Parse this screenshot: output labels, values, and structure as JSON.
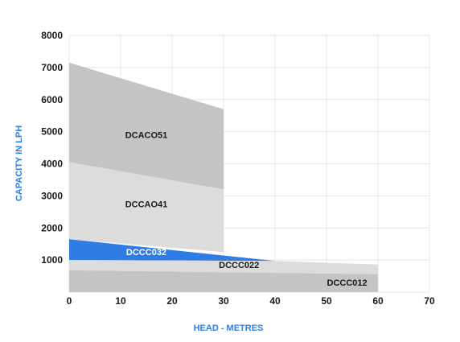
{
  "chart_data": {
    "type": "area",
    "title": "",
    "xlabel": "HEAD - METRES",
    "ylabel": "CAPACITY IN LPH",
    "xlim": [
      0,
      70
    ],
    "ylim": [
      0,
      8000
    ],
    "x_ticks": [
      0,
      10,
      20,
      30,
      40,
      50,
      60,
      70
    ],
    "y_ticks": [
      1000,
      2000,
      3000,
      4000,
      5000,
      6000,
      7000,
      8000
    ],
    "grid": true,
    "colors": {
      "axis_title": "#2f7ce4",
      "grid": "#e4e4e4",
      "text": "#1a1a1a"
    },
    "series": [
      {
        "name": "DCACO51",
        "color": "#c4c4c4",
        "label_color": "#1a1a1a",
        "label_at": [
          15,
          4800
        ],
        "points": [
          [
            0,
            7150
          ],
          [
            30,
            5700
          ],
          [
            30,
            3200
          ],
          [
            0,
            4050
          ]
        ]
      },
      {
        "name": "DCCAO41",
        "color": "#dcdcdc",
        "label_color": "#1a1a1a",
        "label_at": [
          15,
          2650
        ],
        "points": [
          [
            0,
            4050
          ],
          [
            30,
            3200
          ],
          [
            30,
            1250
          ],
          [
            0,
            1650
          ]
        ]
      },
      {
        "name": "DCCC032",
        "color": "#2f7ce4",
        "label_color": "#ffffff",
        "label_at": [
          15,
          1150
        ],
        "points": [
          [
            0,
            1650
          ],
          [
            40,
            970
          ],
          [
            40,
            970
          ],
          [
            0,
            1000
          ]
        ]
      },
      {
        "name": "DCCC022",
        "color": "#dcdcdc",
        "label_color": "#1a1a1a",
        "label_at": [
          33,
          750
        ],
        "points": [
          [
            0,
            1000
          ],
          [
            40,
            970
          ],
          [
            60,
            860
          ],
          [
            60,
            560
          ],
          [
            0,
            680
          ]
        ]
      },
      {
        "name": "DCCC012",
        "color": "#c4c4c4",
        "label_color": "#1a1a1a",
        "label_at": [
          54,
          200
        ],
        "points": [
          [
            0,
            680
          ],
          [
            60,
            560
          ],
          [
            60,
            0
          ],
          [
            0,
            0
          ]
        ]
      }
    ]
  }
}
